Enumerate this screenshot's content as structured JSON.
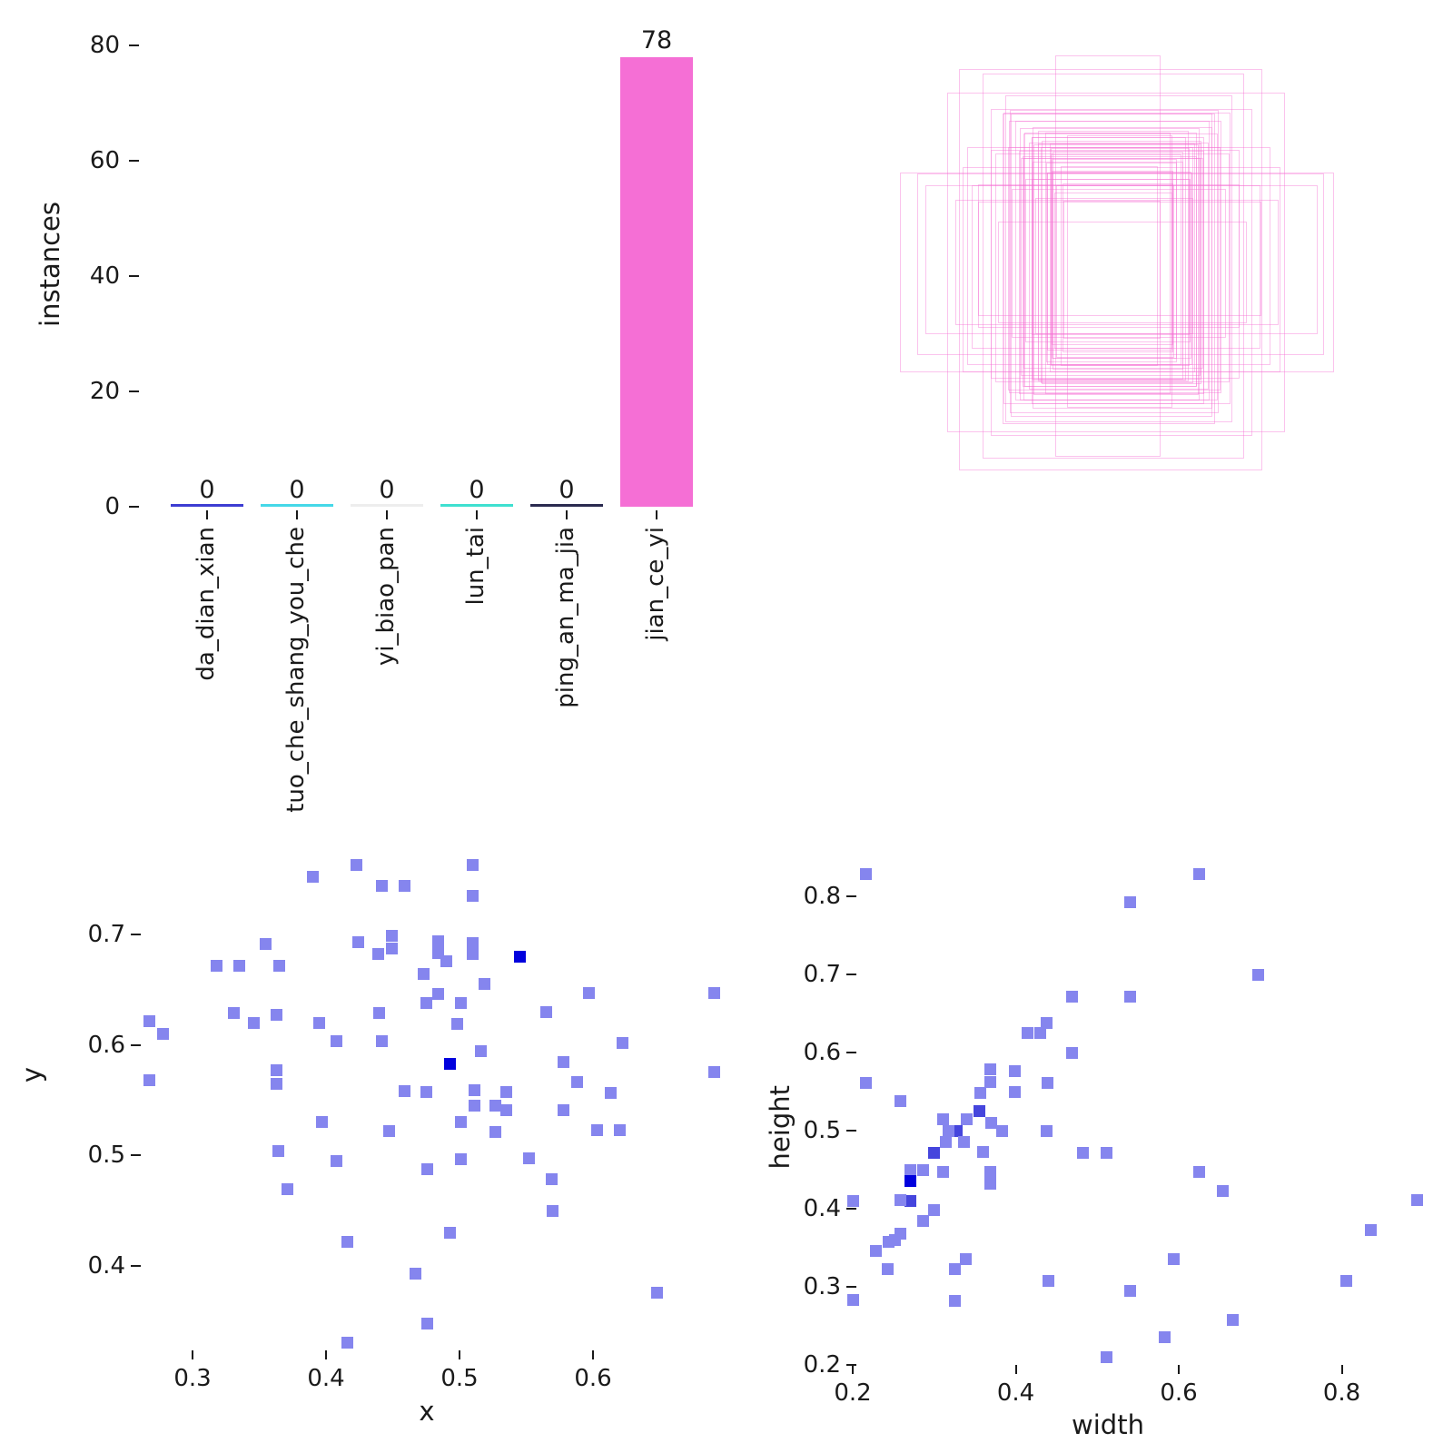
{
  "colors": {
    "background": "#ffffff",
    "text": "#1a1a1a",
    "marker_light": "#8585ee",
    "marker_mid": "#4545dd",
    "marker_dark": "#0101dd",
    "box_line": "#f56fd5",
    "main_bar": "#f56fd5",
    "zero_bar_colors": [
      "#3d3dd2",
      "#45d8e8",
      "#ededed",
      "#3fe0d0",
      "#2b2b50"
    ]
  },
  "chart_data": [
    {
      "type": "bar",
      "ylabel": "instances",
      "categories": [
        "da_dian_xian",
        "tuo_che_shang_you_che",
        "yi_biao_pan",
        "lun_tai",
        "ping_an_ma_jia",
        "jian_ce_yi"
      ],
      "values": [
        0,
        0,
        0,
        0,
        0,
        78
      ],
      "value_labels": [
        "0",
        "0",
        "0",
        "0",
        "0",
        "78"
      ],
      "bar_colors": [
        "#3d3dd2",
        "#45d8e8",
        "#ededed",
        "#3fe0d0",
        "#2b2b50",
        "#f56fd5"
      ],
      "yticks": [
        0,
        20,
        40,
        60,
        80
      ],
      "ylim": [
        0,
        80
      ],
      "grid": false,
      "legend": "none"
    },
    {
      "type": "boxes-overlay",
      "description": "all bounding boxes drawn concentrically as pink outlines",
      "line_color": "#f56fd5",
      "boxes_source": "width/height points of chart 4"
    },
    {
      "type": "scatter",
      "xlabel": "x",
      "ylabel": "y",
      "xticks": [
        0.3,
        0.4,
        0.5,
        0.6
      ],
      "yticks": [
        0.4,
        0.5,
        0.6,
        0.7
      ],
      "xlim": [
        0.24,
        0.71
      ],
      "ylim": [
        0.3,
        0.79
      ],
      "marker": "square",
      "grid": false,
      "points": [
        [
          0.39,
          0.752
        ],
        [
          0.423,
          0.763
        ],
        [
          0.442,
          0.744
        ],
        [
          0.459,
          0.744
        ],
        [
          0.51,
          0.763
        ],
        [
          0.51,
          0.735
        ],
        [
          0.355,
          0.691
        ],
        [
          0.424,
          0.693
        ],
        [
          0.449,
          0.699
        ],
        [
          0.449,
          0.687
        ],
        [
          0.439,
          0.682
        ],
        [
          0.318,
          0.672
        ],
        [
          0.335,
          0.672
        ],
        [
          0.365,
          0.672
        ],
        [
          0.484,
          0.694
        ],
        [
          0.484,
          0.683
        ],
        [
          0.49,
          0.676
        ],
        [
          0.51,
          0.692
        ],
        [
          0.51,
          0.682
        ],
        [
          0.545,
          0.68,
          3
        ],
        [
          0.473,
          0.664
        ],
        [
          0.519,
          0.655
        ],
        [
          0.484,
          0.646
        ],
        [
          0.597,
          0.647
        ],
        [
          0.691,
          0.647
        ],
        [
          0.475,
          0.638
        ],
        [
          0.501,
          0.638
        ],
        [
          0.44,
          0.629
        ],
        [
          0.565,
          0.63
        ],
        [
          0.331,
          0.629
        ],
        [
          0.363,
          0.627
        ],
        [
          0.268,
          0.621
        ],
        [
          0.278,
          0.61
        ],
        [
          0.346,
          0.62
        ],
        [
          0.395,
          0.62
        ],
        [
          0.498,
          0.619
        ],
        [
          0.622,
          0.602
        ],
        [
          0.408,
          0.603
        ],
        [
          0.442,
          0.603
        ],
        [
          0.516,
          0.594
        ],
        [
          0.493,
          0.583,
          3
        ],
        [
          0.578,
          0.584
        ],
        [
          0.588,
          0.566
        ],
        [
          0.268,
          0.568
        ],
        [
          0.363,
          0.577
        ],
        [
          0.363,
          0.565
        ],
        [
          0.459,
          0.558
        ],
        [
          0.475,
          0.557
        ],
        [
          0.613,
          0.556
        ],
        [
          0.691,
          0.575
        ],
        [
          0.511,
          0.559
        ],
        [
          0.511,
          0.545
        ],
        [
          0.527,
          0.545
        ],
        [
          0.535,
          0.557
        ],
        [
          0.535,
          0.541
        ],
        [
          0.578,
          0.541
        ],
        [
          0.501,
          0.53
        ],
        [
          0.397,
          0.53
        ],
        [
          0.447,
          0.522
        ],
        [
          0.527,
          0.521
        ],
        [
          0.603,
          0.523
        ],
        [
          0.62,
          0.523
        ],
        [
          0.552,
          0.497
        ],
        [
          0.501,
          0.496
        ],
        [
          0.476,
          0.487
        ],
        [
          0.569,
          0.478
        ],
        [
          0.57,
          0.449
        ],
        [
          0.364,
          0.504
        ],
        [
          0.408,
          0.495
        ],
        [
          0.371,
          0.469
        ],
        [
          0.493,
          0.43
        ],
        [
          0.416,
          0.421
        ],
        [
          0.467,
          0.393
        ],
        [
          0.648,
          0.375
        ],
        [
          0.476,
          0.347
        ],
        [
          0.416,
          0.33
        ]
      ]
    },
    {
      "type": "scatter",
      "xlabel": "width",
      "ylabel": "height",
      "xticks": [
        0.2,
        0.4,
        0.6,
        0.8
      ],
      "yticks": [
        0.2,
        0.3,
        0.4,
        0.5,
        0.6,
        0.7,
        0.8
      ],
      "xlim": [
        0.18,
        0.92
      ],
      "ylim": [
        0.19,
        0.85
      ],
      "marker": "square",
      "grid": false,
      "points": [
        [
          0.216,
          0.828
        ],
        [
          0.625,
          0.828
        ],
        [
          0.54,
          0.792
        ],
        [
          0.697,
          0.7
        ],
        [
          0.469,
          0.672
        ],
        [
          0.54,
          0.672
        ],
        [
          0.438,
          0.638
        ],
        [
          0.414,
          0.625
        ],
        [
          0.43,
          0.625
        ],
        [
          0.469,
          0.6
        ],
        [
          0.216,
          0.561
        ],
        [
          0.369,
          0.578
        ],
        [
          0.369,
          0.562
        ],
        [
          0.399,
          0.576
        ],
        [
          0.439,
          0.561
        ],
        [
          0.356,
          0.548
        ],
        [
          0.399,
          0.549
        ],
        [
          0.258,
          0.538
        ],
        [
          0.355,
          0.525,
          2
        ],
        [
          0.311,
          0.515
        ],
        [
          0.34,
          0.515
        ],
        [
          0.37,
          0.51
        ],
        [
          0.328,
          0.5,
          2
        ],
        [
          0.318,
          0.5
        ],
        [
          0.383,
          0.5
        ],
        [
          0.438,
          0.5
        ],
        [
          0.314,
          0.485
        ],
        [
          0.337,
          0.486
        ],
        [
          0.3,
          0.472,
          2
        ],
        [
          0.36,
          0.473
        ],
        [
          0.482,
          0.471
        ],
        [
          0.511,
          0.471
        ],
        [
          0.271,
          0.449
        ],
        [
          0.286,
          0.449
        ],
        [
          0.311,
          0.447
        ],
        [
          0.369,
          0.447
        ],
        [
          0.369,
          0.432
        ],
        [
          0.271,
          0.435,
          3
        ],
        [
          0.625,
          0.447
        ],
        [
          0.654,
          0.423
        ],
        [
          0.2,
          0.41
        ],
        [
          0.271,
          0.41,
          2
        ],
        [
          0.259,
          0.411
        ],
        [
          0.893,
          0.411
        ],
        [
          0.3,
          0.398
        ],
        [
          0.286,
          0.384
        ],
        [
          0.259,
          0.368
        ],
        [
          0.252,
          0.36
        ],
        [
          0.244,
          0.357
        ],
        [
          0.228,
          0.346
        ],
        [
          0.836,
          0.373
        ],
        [
          0.339,
          0.336
        ],
        [
          0.325,
          0.323
        ],
        [
          0.243,
          0.323
        ],
        [
          0.594,
          0.335
        ],
        [
          0.44,
          0.308
        ],
        [
          0.806,
          0.308
        ],
        [
          0.54,
          0.295
        ],
        [
          0.2,
          0.283
        ],
        [
          0.325,
          0.282
        ],
        [
          0.666,
          0.257
        ],
        [
          0.583,
          0.235
        ],
        [
          0.511,
          0.21
        ]
      ]
    }
  ]
}
